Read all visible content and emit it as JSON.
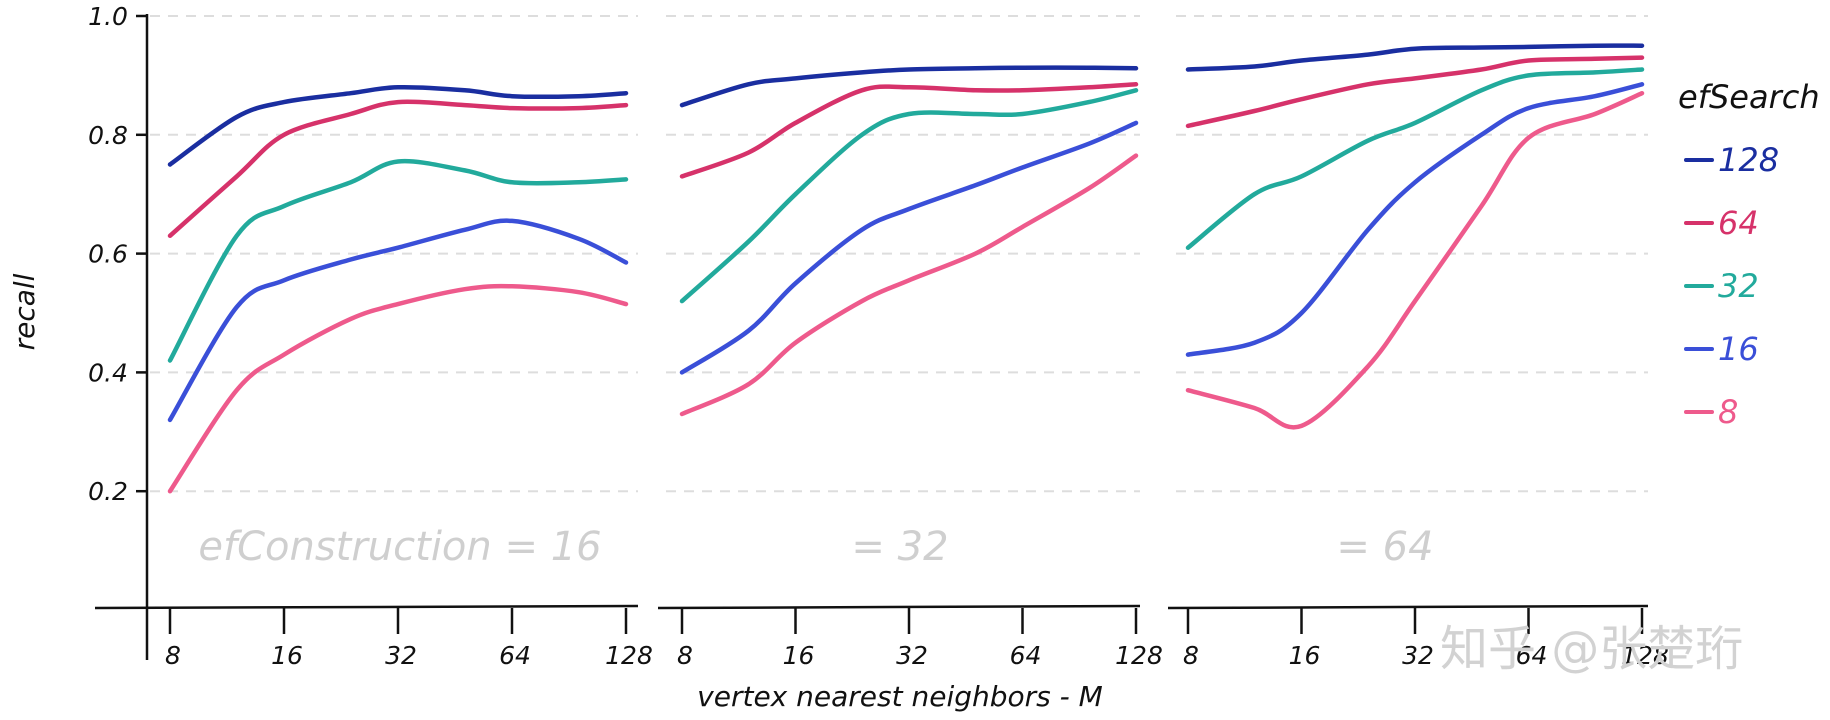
{
  "chart_data": {
    "type": "line",
    "ylabel": "recall",
    "xlabel": "vertex nearest neighbors - M",
    "yticks": [
      "0.2",
      "0.4",
      "0.6",
      "0.8",
      "1.0"
    ],
    "ytick_values": [
      0.2,
      0.4,
      0.6,
      0.8,
      1.0
    ],
    "ylim": [
      0.0,
      1.0
    ],
    "xticks": [
      "8",
      "16",
      "32",
      "64",
      "128"
    ],
    "xtick_values": [
      8,
      16,
      32,
      64,
      128
    ],
    "xlim": [
      8,
      128
    ],
    "grid": "horizontal dashed",
    "legend": {
      "title": "efSearch",
      "position": "right",
      "entries": [
        "128",
        "64",
        "32",
        "16",
        "8"
      ]
    },
    "series_colors": {
      "128": "#1a2ea0",
      "64": "#d6326a",
      "32": "#22aa9c",
      "16": "#3a4fd8",
      "8": "#ee5a8c"
    },
    "panels": [
      {
        "label": "efConstruction = 16",
        "series": [
          {
            "name": "128",
            "x": [
              8,
              12,
              16,
              24,
              32,
              48,
              64,
              96,
              128
            ],
            "y": [
              0.75,
              0.83,
              0.855,
              0.87,
              0.88,
              0.875,
              0.865,
              0.865,
              0.87
            ]
          },
          {
            "name": "64",
            "x": [
              8,
              12,
              16,
              24,
              32,
              48,
              64,
              96,
              128
            ],
            "y": [
              0.63,
              0.73,
              0.8,
              0.835,
              0.855,
              0.85,
              0.845,
              0.845,
              0.85
            ]
          },
          {
            "name": "32",
            "x": [
              8,
              12,
              16,
              24,
              32,
              48,
              64,
              96,
              128
            ],
            "y": [
              0.42,
              0.63,
              0.68,
              0.72,
              0.755,
              0.74,
              0.72,
              0.72,
              0.725
            ]
          },
          {
            "name": "16",
            "x": [
              8,
              12,
              16,
              24,
              32,
              48,
              64,
              96,
              128
            ],
            "y": [
              0.32,
              0.51,
              0.555,
              0.59,
              0.61,
              0.64,
              0.655,
              0.625,
              0.585
            ]
          },
          {
            "name": "8",
            "x": [
              8,
              12,
              16,
              24,
              32,
              48,
              64,
              96,
              128
            ],
            "y": [
              0.2,
              0.37,
              0.43,
              0.49,
              0.515,
              0.54,
              0.545,
              0.535,
              0.515
            ]
          }
        ]
      },
      {
        "label": "= 32",
        "series": [
          {
            "name": "128",
            "x": [
              8,
              12,
              16,
              24,
              32,
              48,
              64,
              96,
              128
            ],
            "y": [
              0.85,
              0.885,
              0.895,
              0.905,
              0.91,
              0.912,
              0.913,
              0.913,
              0.912
            ]
          },
          {
            "name": "64",
            "x": [
              8,
              12,
              16,
              24,
              32,
              48,
              64,
              96,
              128
            ],
            "y": [
              0.73,
              0.77,
              0.82,
              0.875,
              0.88,
              0.875,
              0.875,
              0.88,
              0.885
            ]
          },
          {
            "name": "32",
            "x": [
              8,
              12,
              16,
              24,
              32,
              48,
              64,
              96,
              128
            ],
            "y": [
              0.52,
              0.62,
              0.7,
              0.8,
              0.835,
              0.835,
              0.835,
              0.855,
              0.875
            ]
          },
          {
            "name": "16",
            "x": [
              8,
              12,
              16,
              24,
              32,
              48,
              64,
              96,
              128
            ],
            "y": [
              0.4,
              0.47,
              0.55,
              0.64,
              0.675,
              0.715,
              0.745,
              0.785,
              0.82
            ]
          },
          {
            "name": "8",
            "x": [
              8,
              12,
              16,
              24,
              32,
              48,
              64,
              96,
              128
            ],
            "y": [
              0.33,
              0.38,
              0.45,
              0.52,
              0.555,
              0.6,
              0.645,
              0.71,
              0.765
            ]
          }
        ]
      },
      {
        "label": "= 64",
        "series": [
          {
            "name": "128",
            "x": [
              8,
              12,
              16,
              24,
              32,
              48,
              64,
              96,
              128
            ],
            "y": [
              0.91,
              0.915,
              0.925,
              0.935,
              0.945,
              0.947,
              0.948,
              0.95,
              0.95
            ]
          },
          {
            "name": "64",
            "x": [
              8,
              12,
              16,
              24,
              32,
              48,
              64,
              96,
              128
            ],
            "y": [
              0.815,
              0.84,
              0.86,
              0.885,
              0.895,
              0.91,
              0.925,
              0.928,
              0.93
            ]
          },
          {
            "name": "32",
            "x": [
              8,
              12,
              16,
              24,
              32,
              48,
              64,
              96,
              128
            ],
            "y": [
              0.61,
              0.7,
              0.73,
              0.79,
              0.82,
              0.875,
              0.9,
              0.905,
              0.91
            ]
          },
          {
            "name": "16",
            "x": [
              8,
              12,
              16,
              24,
              32,
              48,
              64,
              96,
              128
            ],
            "y": [
              0.43,
              0.45,
              0.5,
              0.64,
              0.72,
              0.8,
              0.845,
              0.865,
              0.885
            ]
          },
          {
            "name": "8",
            "x": [
              8,
              12,
              16,
              24,
              32,
              48,
              64,
              96,
              128
            ],
            "y": [
              0.37,
              0.34,
              0.31,
              0.41,
              0.52,
              0.68,
              0.795,
              0.835,
              0.87
            ]
          }
        ]
      }
    ]
  },
  "watermark": "知乎 @张楚珩"
}
